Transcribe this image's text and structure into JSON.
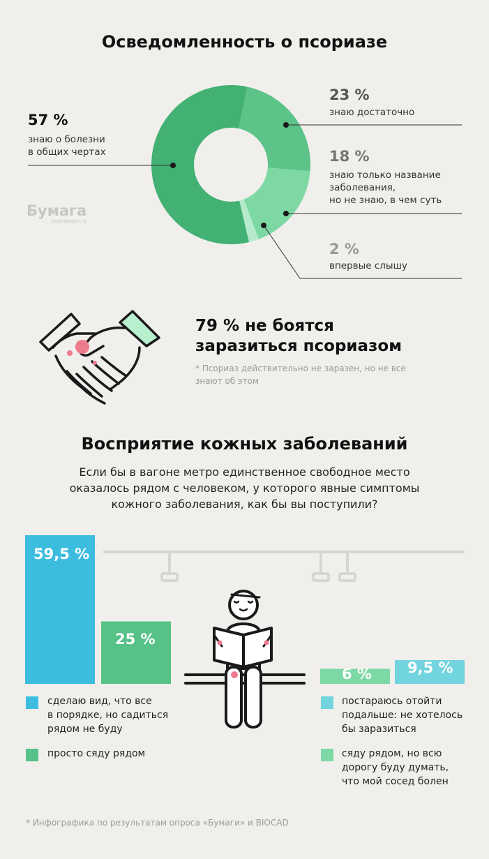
{
  "donut": {
    "title": "Осведомленность о псориазе",
    "slices": [
      {
        "pct": "57 %",
        "value": 57,
        "label_lines": [
          "знаю о болезни",
          "в общих чертах"
        ],
        "color": "#43b174"
      },
      {
        "pct": "23 %",
        "value": 23,
        "label_lines": [
          "знаю достаточно"
        ],
        "color": "#5cc389"
      },
      {
        "pct": "18 %",
        "value": 18,
        "label_lines": [
          "знаю только название",
          "заболевания,",
          "но не знаю, в чем суть"
        ],
        "color": "#7ed8a4"
      },
      {
        "pct": "2 %",
        "value": 2,
        "label_lines": [
          "впервые слышу"
        ],
        "color": "#b5ebcc"
      }
    ],
    "logo_text": "Бумага",
    "logo_sub": "paperpaper.ru"
  },
  "fear": {
    "headline_1": "79 % не боятся",
    "headline_2": "заразиться псориазом",
    "note_1": "* Псориаз действительно не заразен, но не все",
    "note_2": "знают об этом"
  },
  "perception": {
    "title": "Восприятие кожных заболеваний",
    "question_1": "Если бы в вагоне метро единственное свободное место",
    "question_2": "оказалось рядом с человеком, у которого явные симптомы",
    "question_3": "кожного заболевания, как бы вы поступили?"
  },
  "chart_data": {
    "type": "bar",
    "title": "Восприятие кожных заболеваний",
    "categories": [
      "сделаю вид, что все в порядке, но садиться рядом не буду",
      "просто сяду рядом",
      "сяду рядом, но всю дорогу буду думать, что мой сосед болен",
      "постараюсь отойти подальше: не хотелось бы заразиться"
    ],
    "values": [
      59.5,
      25,
      6,
      9.5
    ],
    "value_labels": [
      "59,5 %",
      "25 %",
      "6 %",
      "9,5 %"
    ],
    "colors": [
      "#3cbde0",
      "#56c287",
      "#7cd8a4",
      "#72d4de"
    ],
    "ylim": [
      0,
      59.5
    ]
  },
  "legend": [
    {
      "color": "#3cbde0",
      "lines": [
        "сделаю вид, что все",
        "в порядке, но садиться",
        "рядом не буду"
      ]
    },
    {
      "color": "#56c287",
      "lines": [
        "просто сяду рядом"
      ]
    },
    {
      "color": "#72d4de",
      "lines": [
        "постараюсь отойти",
        "подальше: не хотелось",
        "бы заразиться"
      ]
    },
    {
      "color": "#7cd8a4",
      "lines": [
        "сяду рядом, но всю",
        "дорогу буду думать,",
        "что мой сосед болен"
      ]
    }
  ],
  "footer": "* Инфографика по результатам опроса «Бумаги» и BIOCAD"
}
